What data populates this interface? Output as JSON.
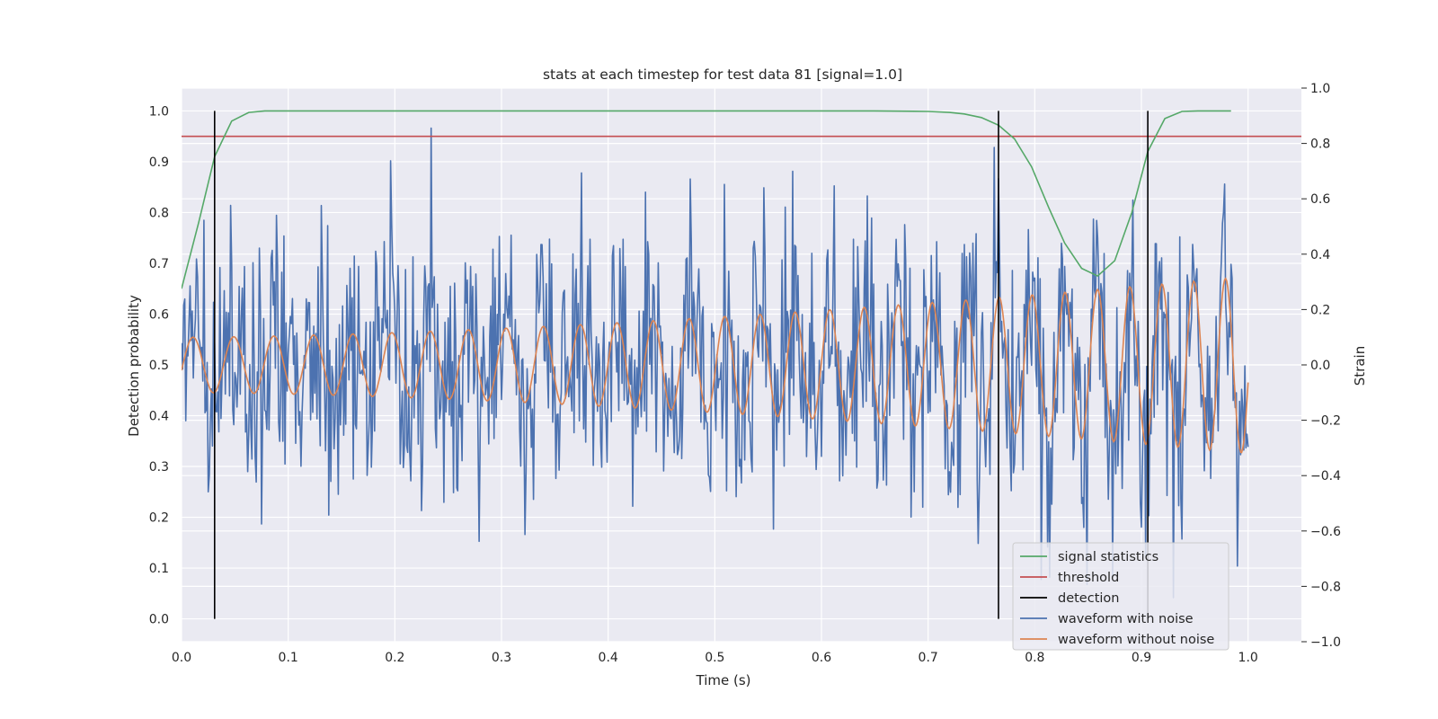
{
  "chart_data": {
    "type": "line",
    "title": "stats at each timestep for test data 81 [signal=1.0]",
    "xlabel": "Time (s)",
    "ylabel_left": "Detection probability",
    "ylabel_right": "Strain",
    "xlim": [
      0.0,
      1.05
    ],
    "ylim_left": [
      -0.045,
      1.045
    ],
    "ylim_right": [
      -1.0,
      1.0
    ],
    "x_ticks": [
      "0.0",
      "0.1",
      "0.2",
      "0.3",
      "0.4",
      "0.5",
      "0.6",
      "0.7",
      "0.8",
      "0.9",
      "1.0"
    ],
    "y_ticks_left": [
      "0.0",
      "0.1",
      "0.2",
      "0.3",
      "0.4",
      "0.5",
      "0.6",
      "0.7",
      "0.8",
      "0.9",
      "1.0"
    ],
    "y_ticks_right": [
      "−1.0",
      "−0.8",
      "−0.6",
      "−0.4",
      "−0.2",
      "0.0",
      "0.2",
      "0.4",
      "0.6",
      "0.8",
      "1.0"
    ],
    "grid": true,
    "legend_position": "bottom-right",
    "colors": {
      "background": "#eaeaf2",
      "grid": "#ffffff",
      "signal_statistics": "#55a868",
      "threshold": "#c44e52",
      "detection": "#000000",
      "waveform_with_noise": "#4c72b0",
      "waveform_without_noise": "#dd8452"
    },
    "series": [
      {
        "name": "signal statistics",
        "axis": "left",
        "x": [
          0.0,
          0.016,
          0.031,
          0.047,
          0.063,
          0.078,
          0.094,
          0.11,
          0.2,
          0.3,
          0.4,
          0.5,
          0.6,
          0.65,
          0.7,
          0.72,
          0.734,
          0.75,
          0.766,
          0.781,
          0.797,
          0.813,
          0.828,
          0.844,
          0.859,
          0.875,
          0.891,
          0.906,
          0.922,
          0.938,
          0.953,
          0.969,
          0.984
        ],
        "y": [
          0.65,
          0.78,
          0.91,
          0.98,
          0.997,
          1.0,
          1.0,
          1.0,
          1.0,
          1.0,
          1.0,
          1.0,
          1.0,
          1.0,
          0.999,
          0.997,
          0.994,
          0.987,
          0.972,
          0.945,
          0.89,
          0.81,
          0.74,
          0.69,
          0.675,
          0.705,
          0.8,
          0.92,
          0.985,
          0.999,
          1.0,
          1.0,
          1.0
        ]
      },
      {
        "name": "threshold",
        "axis": "left",
        "x": [
          0.0,
          1.05
        ],
        "y": [
          0.95,
          0.95
        ]
      },
      {
        "name": "detection",
        "axis": "left",
        "type": "vlines",
        "x": [
          0.031,
          0.766,
          0.906
        ],
        "ymin": 0.0,
        "ymax": 1.0
      },
      {
        "name": "waveform with noise",
        "axis": "right",
        "description_visible": "noisy strain time series, roughly 1000 samples over 0-1.0 s",
        "x_range": [
          0.0,
          1.0
        ],
        "approx_range": [
          -0.92,
          0.92
        ],
        "sample_count": 1000
      },
      {
        "name": "waveform without noise",
        "axis": "right",
        "description_visible": "chirp sinusoid with slowly increasing frequency and amplitude",
        "x_range": [
          0.0,
          1.0
        ],
        "approx_amplitude_start": 0.1,
        "approx_amplitude_end": 0.32,
        "approx_cycles": 30
      }
    ],
    "legend": [
      {
        "label": "signal statistics",
        "series": "signal statistics"
      },
      {
        "label": "threshold",
        "series": "threshold"
      },
      {
        "label": "detection",
        "series": "detection"
      },
      {
        "label": "waveform with noise",
        "series": "waveform with noise"
      },
      {
        "label": "waveform without noise",
        "series": "waveform without noise"
      }
    ]
  }
}
